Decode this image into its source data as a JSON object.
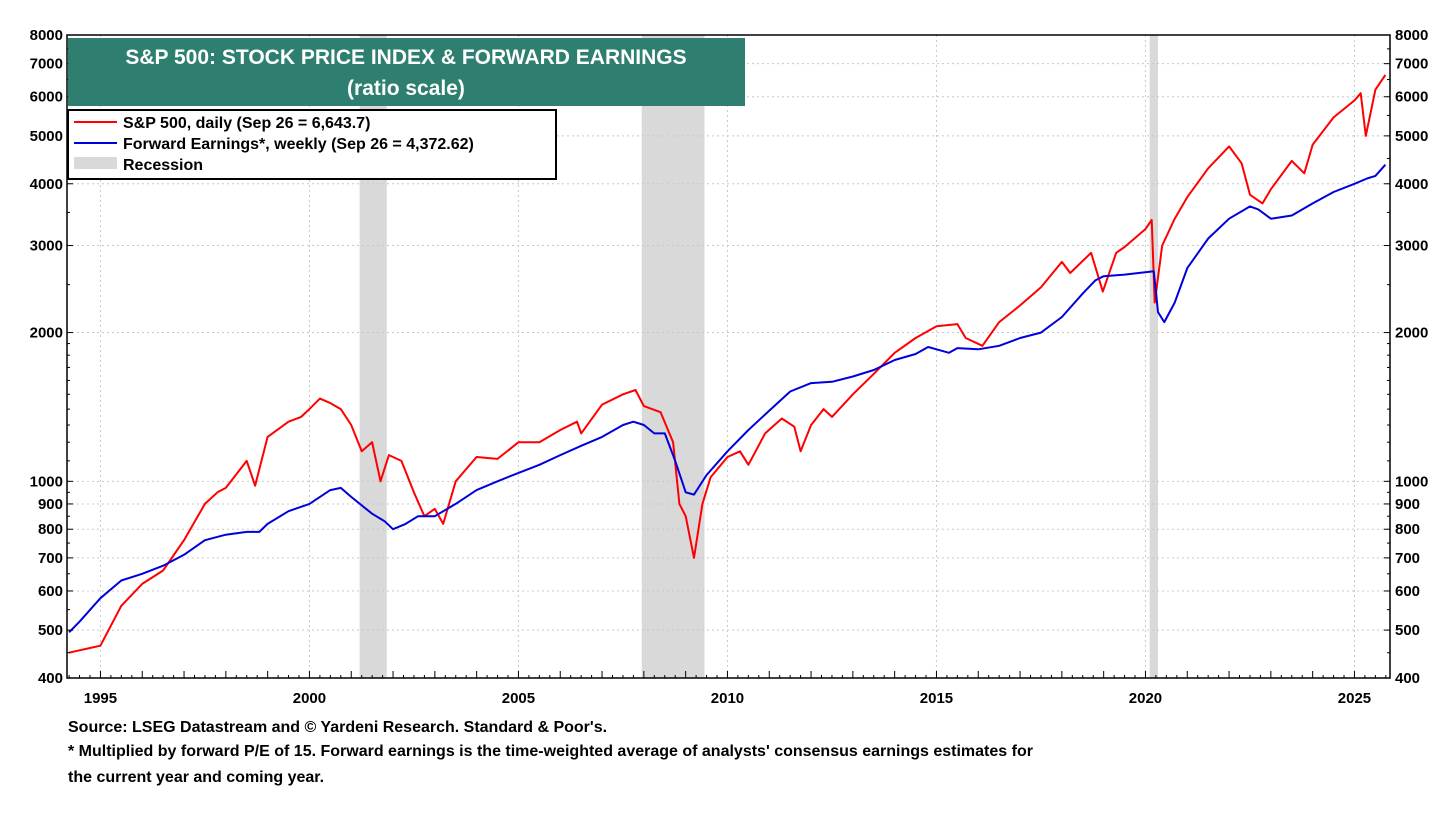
{
  "chart_data": {
    "type": "line",
    "title": "S&P 500: STOCK PRICE INDEX & FORWARD EARNINGS",
    "subtitle": "(ratio scale)",
    "y_scale": "log",
    "ylim": [
      400,
      8000
    ],
    "xlim": [
      1994.2,
      2025.85
    ],
    "y_ticks_labeled": [
      400,
      500,
      600,
      700,
      800,
      900,
      1000,
      2000,
      3000,
      4000,
      5000,
      6000,
      7000,
      8000
    ],
    "x_ticks_labeled": [
      1995,
      2000,
      2005,
      2010,
      2015,
      2020,
      2025
    ],
    "grid": true,
    "legend_position": "top-left",
    "colors": {
      "sp500": "#ff0000",
      "forward_earnings": "#0000dd",
      "recession": "#d9d9d9",
      "title_bg": "#2e7f6f"
    },
    "legend": [
      {
        "label": "S&P 500, daily (Sep 26 = 6,643.7)",
        "color": "#ff0000",
        "kind": "line"
      },
      {
        "label": "Forward Earnings*, weekly (Sep 26 = 4,372.62)",
        "color": "#0000dd",
        "kind": "line"
      },
      {
        "label": "Recession",
        "color": "#d9d9d9",
        "kind": "box"
      }
    ],
    "recessions": [
      [
        2001.2,
        2001.85
      ],
      [
        2007.95,
        2009.45
      ],
      [
        2020.1,
        2020.3
      ]
    ],
    "series": [
      {
        "name": "S&P 500, daily (Sep 26 = 6,643.7)",
        "color": "#ff0000",
        "x": [
          1994.25,
          1994.5,
          1994.75,
          1995.0,
          1995.5,
          1996.0,
          1996.5,
          1997.0,
          1997.5,
          1997.8,
          1998.0,
          1998.5,
          1998.7,
          1999.0,
          1999.5,
          1999.8,
          2000.0,
          2000.25,
          2000.5,
          2000.75,
          2001.0,
          2001.25,
          2001.5,
          2001.7,
          2001.9,
          2002.2,
          2002.5,
          2002.75,
          2003.0,
          2003.2,
          2003.5,
          2004.0,
          2004.5,
          2005.0,
          2005.5,
          2006.0,
          2006.4,
          2006.5,
          2007.0,
          2007.5,
          2007.8,
          2008.0,
          2008.4,
          2008.7,
          2008.85,
          2009.0,
          2009.2,
          2009.4,
          2009.6,
          2010.0,
          2010.3,
          2010.5,
          2010.9,
          2011.3,
          2011.6,
          2011.75,
          2012.0,
          2012.3,
          2012.5,
          2013.0,
          2013.5,
          2014.0,
          2014.5,
          2015.0,
          2015.5,
          2015.7,
          2016.1,
          2016.5,
          2017.0,
          2017.5,
          2018.0,
          2018.2,
          2018.7,
          2018.98,
          2019.3,
          2019.5,
          2020.0,
          2020.15,
          2020.22,
          2020.4,
          2020.7,
          2021.0,
          2021.5,
          2022.0,
          2022.3,
          2022.5,
          2022.8,
          2023.0,
          2023.5,
          2023.8,
          2024.0,
          2024.5,
          2025.0,
          2025.15,
          2025.27,
          2025.5,
          2025.74
        ],
        "values": [
          450,
          455,
          460,
          465,
          560,
          620,
          660,
          760,
          900,
          950,
          970,
          1100,
          980,
          1230,
          1320,
          1350,
          1400,
          1470,
          1440,
          1400,
          1300,
          1150,
          1200,
          1000,
          1130,
          1100,
          950,
          850,
          880,
          820,
          1000,
          1120,
          1110,
          1200,
          1200,
          1270,
          1320,
          1250,
          1430,
          1500,
          1530,
          1420,
          1380,
          1200,
          900,
          850,
          700,
          900,
          1020,
          1120,
          1150,
          1080,
          1250,
          1340,
          1290,
          1150,
          1300,
          1400,
          1350,
          1500,
          1650,
          1820,
          1950,
          2060,
          2080,
          1950,
          1880,
          2100,
          2270,
          2470,
          2780,
          2640,
          2900,
          2420,
          2900,
          2980,
          3240,
          3380,
          2300,
          3000,
          3400,
          3760,
          4300,
          4760,
          4400,
          3800,
          3650,
          3900,
          4450,
          4200,
          4800,
          5450,
          5900,
          6100,
          5000,
          6200,
          6643.7
        ]
      },
      {
        "name": "Forward Earnings*, weekly (Sep 26 = 4,372.62)",
        "color": "#0000dd",
        "x": [
          1994.25,
          1994.5,
          1995.0,
          1995.5,
          1996.0,
          1996.5,
          1997.0,
          1997.5,
          1998.0,
          1998.5,
          1998.8,
          1999.0,
          1999.5,
          2000.0,
          2000.5,
          2000.75,
          2001.0,
          2001.5,
          2001.8,
          2002.0,
          2002.3,
          2002.6,
          2003.0,
          2003.5,
          2004.0,
          2004.5,
          2005.0,
          2005.5,
          2006.0,
          2006.5,
          2007.0,
          2007.5,
          2007.75,
          2008.0,
          2008.25,
          2008.5,
          2008.75,
          2009.0,
          2009.2,
          2009.5,
          2010.0,
          2010.5,
          2011.0,
          2011.5,
          2012.0,
          2012.5,
          2013.0,
          2013.5,
          2014.0,
          2014.5,
          2014.8,
          2015.0,
          2015.3,
          2015.5,
          2016.0,
          2016.5,
          2017.0,
          2017.5,
          2018.0,
          2018.5,
          2018.8,
          2019.0,
          2019.5,
          2020.0,
          2020.2,
          2020.3,
          2020.45,
          2020.7,
          2021.0,
          2021.5,
          2022.0,
          2022.5,
          2022.7,
          2023.0,
          2023.5,
          2024.0,
          2024.5,
          2025.0,
          2025.3,
          2025.5,
          2025.74
        ],
        "values": [
          495,
          520,
          580,
          630,
          650,
          675,
          710,
          760,
          780,
          790,
          790,
          820,
          870,
          900,
          960,
          970,
          930,
          860,
          830,
          800,
          820,
          850,
          850,
          900,
          960,
          1000,
          1040,
          1080,
          1130,
          1180,
          1230,
          1300,
          1320,
          1300,
          1250,
          1250,
          1100,
          950,
          940,
          1030,
          1150,
          1270,
          1390,
          1520,
          1580,
          1590,
          1630,
          1680,
          1760,
          1810,
          1870,
          1850,
          1820,
          1860,
          1850,
          1880,
          1950,
          2000,
          2150,
          2400,
          2550,
          2600,
          2620,
          2650,
          2660,
          2200,
          2100,
          2300,
          2700,
          3100,
          3400,
          3600,
          3550,
          3400,
          3450,
          3650,
          3850,
          4000,
          4100,
          4150,
          4372.62
        ]
      }
    ]
  },
  "footnotes": {
    "source": "Source: LSEG Datastream and © Yardeni Research. Standard & Poor's.",
    "note_line1": "* Multiplied by forward P/E of 15. Forward earnings is the time-weighted average of analysts' consensus earnings estimates for",
    "note_line2": "the current year and coming year."
  }
}
